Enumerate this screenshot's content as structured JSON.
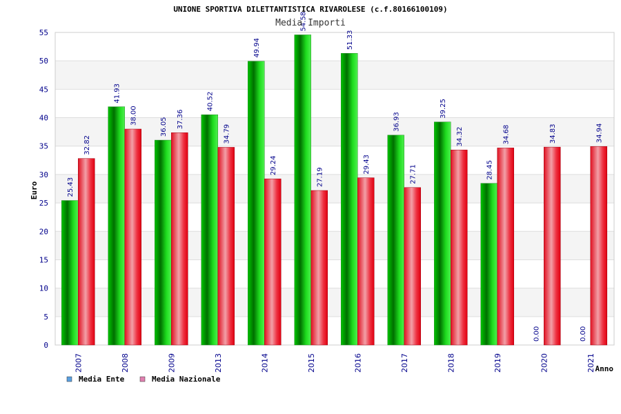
{
  "chart_data": {
    "type": "bar",
    "title": "UNIONE SPORTIVA DILETTANTISTICA RIVAROLESE (c.f.80166100109)",
    "subtitle": "Media Importi",
    "xlabel": "Anno",
    "ylabel": "Euro",
    "ylim": [
      0,
      55
    ],
    "yticks": [
      0,
      5,
      10,
      15,
      20,
      25,
      30,
      35,
      40,
      45,
      50,
      55
    ],
    "grid": true,
    "legend_position": "bottom-left",
    "categories": [
      "2007",
      "2008",
      "2009",
      "2013",
      "2014",
      "2015",
      "2016",
      "2017",
      "2018",
      "2019",
      "2020",
      "2021"
    ],
    "series": [
      {
        "name": "Media Ente",
        "color": "#00b000",
        "legend_color": "#5aa0e0",
        "values": [
          25.43,
          41.93,
          36.05,
          40.52,
          49.94,
          54.58,
          51.33,
          36.93,
          39.25,
          28.45,
          0.0,
          0.0
        ],
        "labels": [
          "25.43",
          "41.93",
          "36.05",
          "40.52",
          "49.94",
          "54.58",
          "51.33",
          "36.93",
          "39.25",
          "28.45",
          "0.00",
          "0.00"
        ]
      },
      {
        "name": "Media Nazionale",
        "color": "#e8101c",
        "legend_color": "#e080b0",
        "values": [
          32.82,
          38.0,
          37.36,
          34.79,
          29.24,
          27.19,
          29.43,
          27.71,
          34.32,
          34.68,
          34.83,
          34.94
        ],
        "labels": [
          "32.82",
          "38.00",
          "37.36",
          "34.79",
          "29.24",
          "27.19",
          "29.43",
          "27.71",
          "34.32",
          "34.68",
          "34.83",
          "34.94"
        ]
      }
    ]
  }
}
